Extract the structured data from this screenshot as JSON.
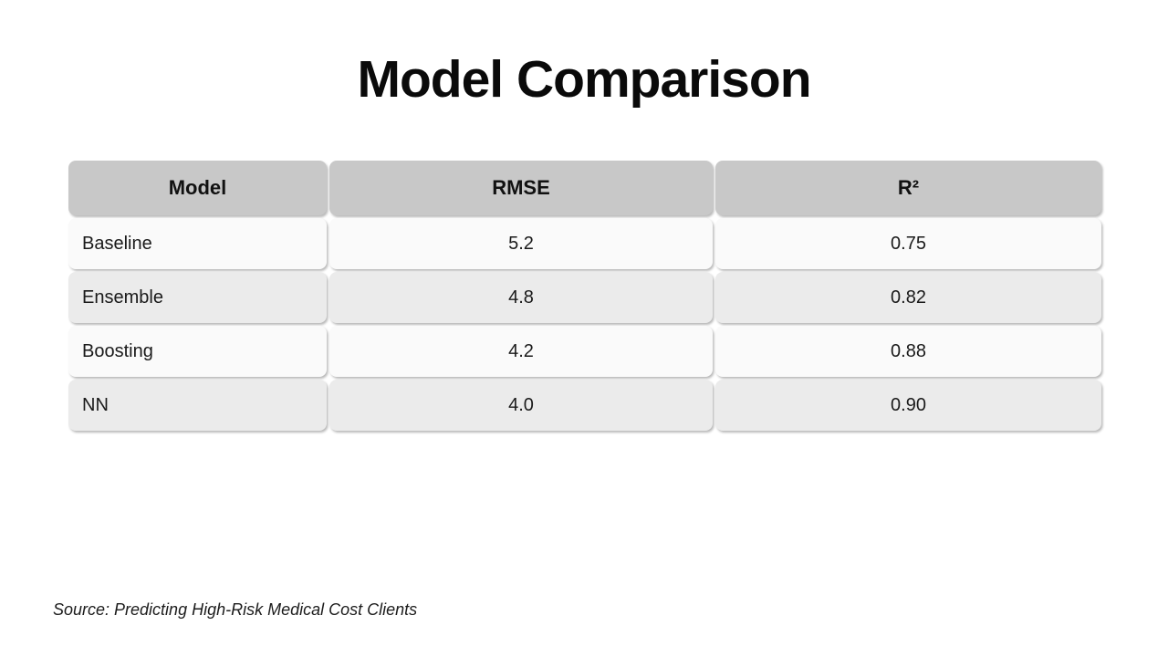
{
  "slide": {
    "title": "Model Comparison",
    "source": "Source: Predicting High-Risk Medical Cost Clients"
  },
  "table": {
    "columns": [
      "Model",
      "RMSE",
      "R²"
    ],
    "rows": [
      {
        "model": "Baseline",
        "rmse": "5.2",
        "r2": "0.75"
      },
      {
        "model": "Ensemble",
        "rmse": "4.8",
        "r2": "0.82"
      },
      {
        "model": "Boosting",
        "rmse": "4.2",
        "r2": "0.88"
      },
      {
        "model": "NN",
        "rmse": "4.0",
        "r2": "0.90"
      }
    ]
  },
  "chart_data": {
    "type": "table",
    "title": "Model Comparison",
    "columns": [
      "Model",
      "RMSE",
      "R²"
    ],
    "rows": [
      [
        "Baseline",
        5.2,
        0.75
      ],
      [
        "Ensemble",
        4.8,
        0.82
      ],
      [
        "Boosting",
        4.2,
        0.88
      ],
      [
        "NN",
        4.0,
        0.9
      ]
    ]
  },
  "colors": {
    "background": "#ffffff",
    "header_fill": "#c8c8c8",
    "row_light": "#fafafa",
    "row_dark": "#ebebeb",
    "text": "#111111"
  }
}
